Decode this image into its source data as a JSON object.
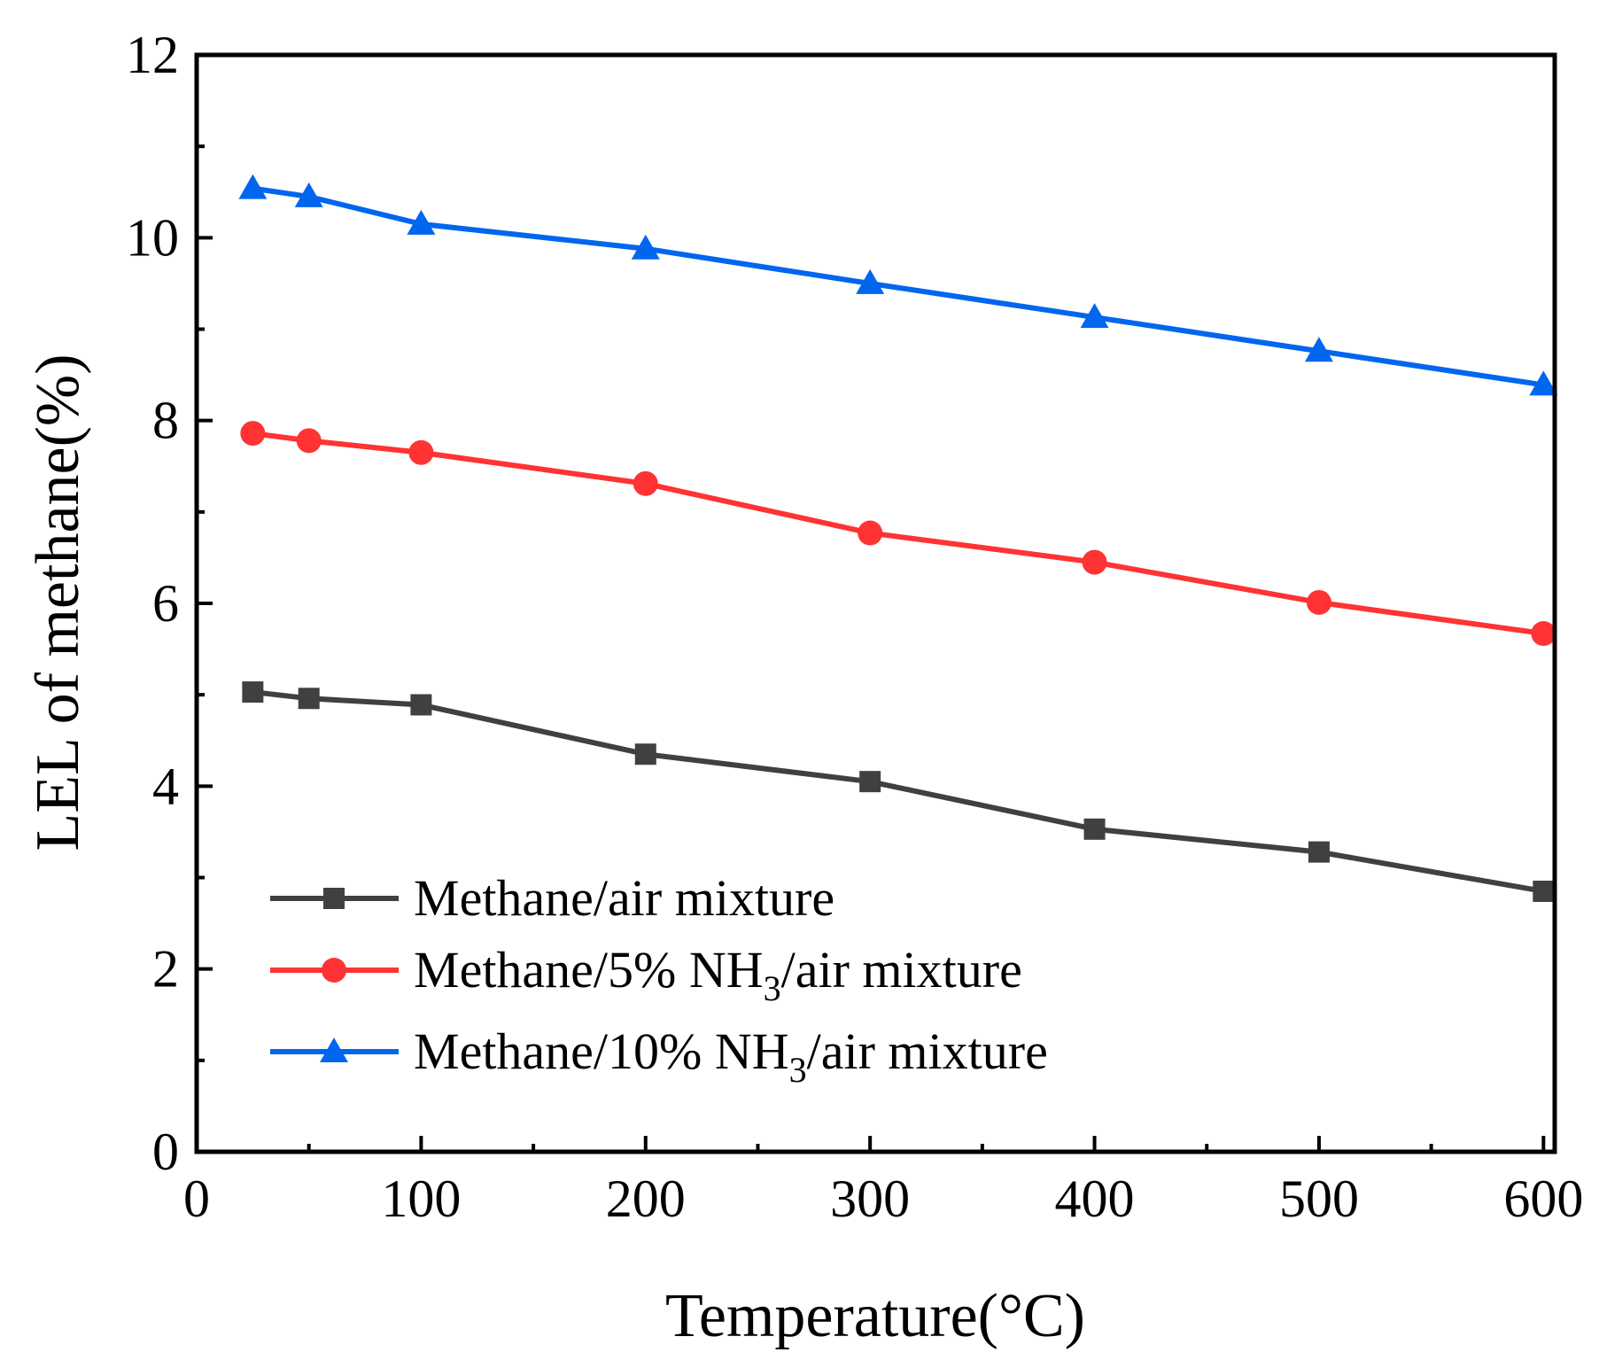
{
  "chart_data": {
    "type": "line",
    "title": "",
    "xlabel": "Temperature(°C)",
    "ylabel": "LEL of methane(%)",
    "xlim": [
      0,
      605
    ],
    "ylim": [
      0,
      12
    ],
    "xticks": [
      0,
      100,
      200,
      300,
      400,
      500,
      600
    ],
    "yticks": [
      0,
      2,
      4,
      6,
      8,
      10,
      12
    ],
    "x": [
      25,
      50,
      100,
      200,
      300,
      400,
      500,
      600
    ],
    "legend_position": "bottom-left",
    "grid": false,
    "series": [
      {
        "name": "Methane/air mixture",
        "label_parts": [
          "Methane/air mixture"
        ],
        "color": "#404040",
        "marker": "square",
        "values": [
          5.03,
          4.96,
          4.89,
          4.35,
          4.05,
          3.53,
          3.28,
          2.85
        ]
      },
      {
        "name": "Methane/5% NH3/air mixture",
        "label_parts": [
          "Methane/5% NH",
          "3",
          "/air mixture"
        ],
        "color": "#ff3333",
        "marker": "circle",
        "values": [
          7.86,
          7.78,
          7.65,
          7.31,
          6.77,
          6.45,
          6.01,
          5.67
        ]
      },
      {
        "name": "Methane/10% NH3/air mixture",
        "label_parts": [
          "Methane/10% NH",
          "3",
          "/air mixture"
        ],
        "color": "#0066ee",
        "marker": "triangle",
        "values": [
          10.54,
          10.45,
          10.15,
          9.88,
          9.5,
          9.13,
          8.76,
          8.39
        ]
      }
    ]
  }
}
